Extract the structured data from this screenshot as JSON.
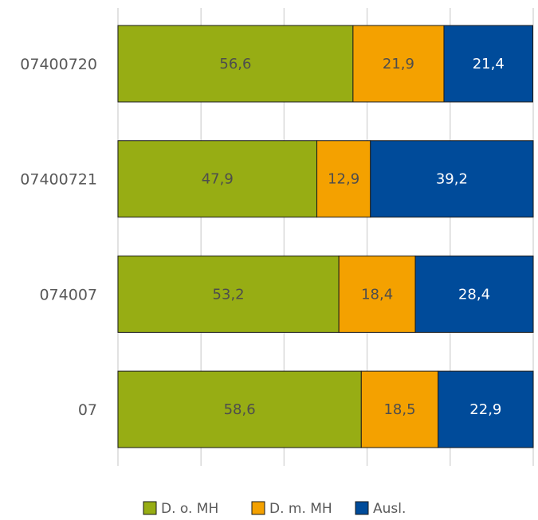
{
  "chart_data": {
    "type": "bar",
    "orientation": "horizontal",
    "stacked": true,
    "categories": [
      "07400720",
      "07400721",
      "074007",
      "07"
    ],
    "series": [
      {
        "name": "D. o. MH",
        "color": "#97AD14",
        "values": [
          56.6,
          47.9,
          53.2,
          58.6
        ],
        "labels": [
          "56,6",
          "47,9",
          "53,2",
          "58,6"
        ],
        "label_color": "#4d4d4d"
      },
      {
        "name": "D. m. MH",
        "color": "#F4A100",
        "values": [
          21.9,
          12.9,
          18.4,
          18.5
        ],
        "labels": [
          "21,9",
          "12,9",
          "18,4",
          "18,5"
        ],
        "label_color": "#4d4d4d"
      },
      {
        "name": "Ausl.",
        "color": "#004B9A",
        "values": [
          21.4,
          39.2,
          28.4,
          22.9
        ],
        "labels": [
          "21,4",
          "39,2",
          "28,4",
          "22,9"
        ],
        "label_color": "#ffffff"
      }
    ],
    "xlim": [
      0,
      100
    ],
    "grid": true,
    "legend_position": "bottom"
  }
}
